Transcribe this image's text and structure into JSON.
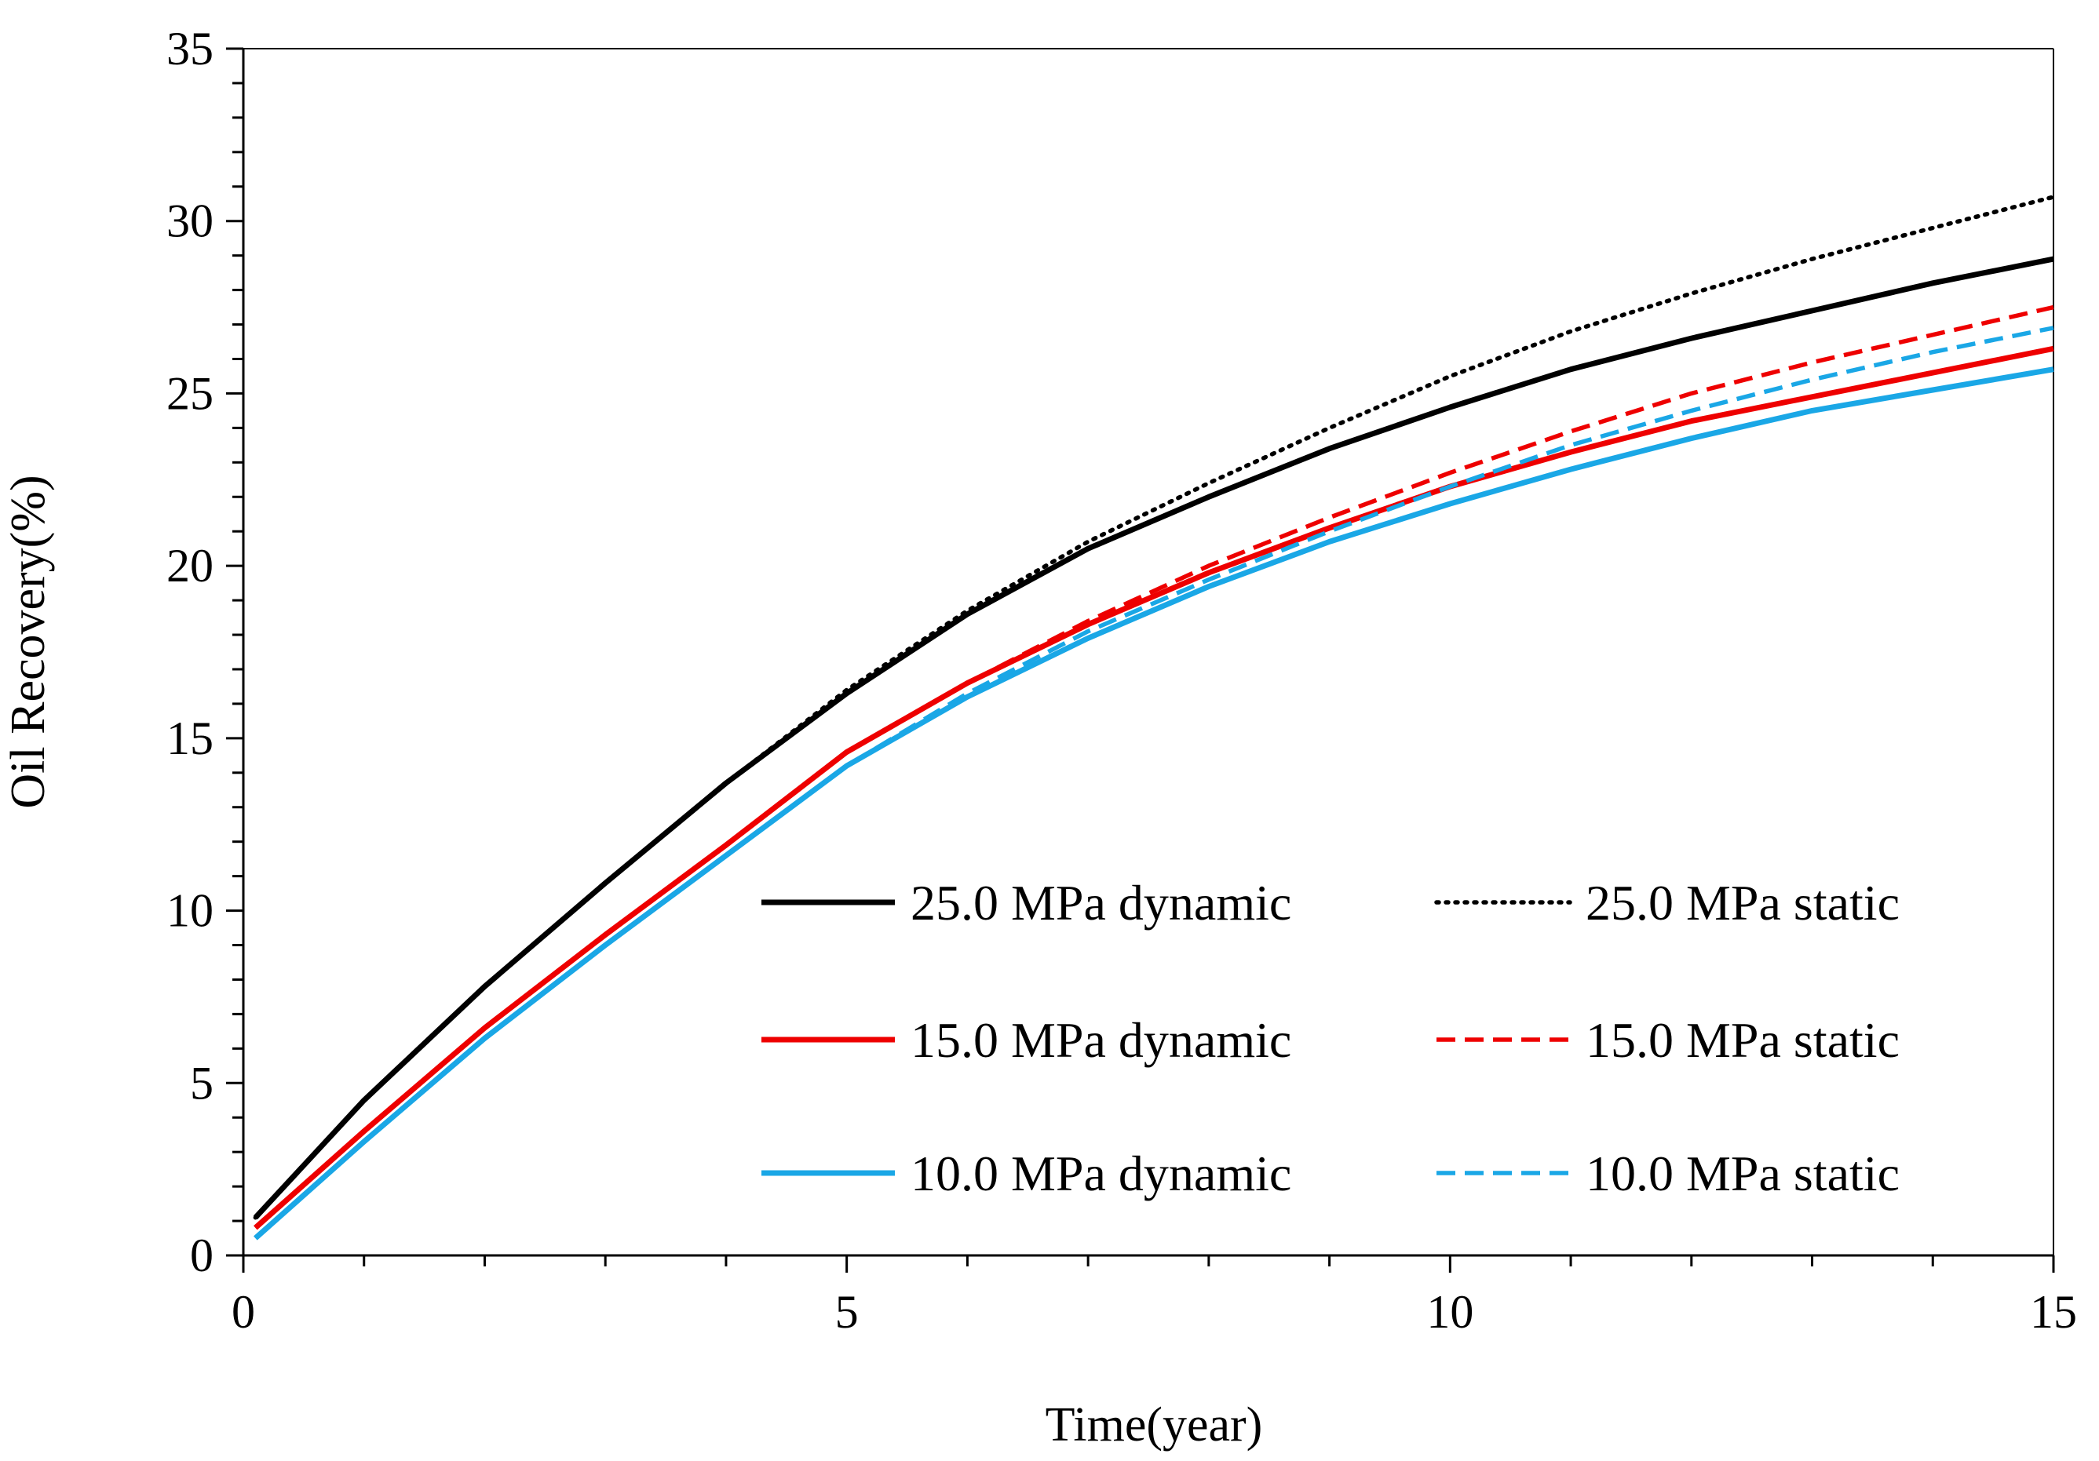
{
  "chart_data": {
    "type": "line",
    "title": "",
    "xlabel": "Time(year)",
    "ylabel": "Oil Recovery(%)",
    "xlim": [
      0,
      15
    ],
    "ylim": [
      0,
      35
    ],
    "x_ticks": [
      0,
      5,
      10,
      15
    ],
    "x_minor_step": 1,
    "y_ticks": [
      0,
      5,
      10,
      15,
      20,
      25,
      30,
      35
    ],
    "y_minor_step": 1,
    "grid": false,
    "legend_position": "lower-right",
    "x": [
      0.1,
      1,
      2,
      3,
      4,
      5,
      6,
      7,
      8,
      9,
      10,
      11,
      12,
      13,
      14,
      15
    ],
    "series": [
      {
        "name": "25.0 MPa dynamic",
        "color": "#000000",
        "dash": "solid",
        "values": [
          1.1,
          4.5,
          7.8,
          10.8,
          13.7,
          16.3,
          18.6,
          20.5,
          22.0,
          23.4,
          24.6,
          25.7,
          26.6,
          27.4,
          28.2,
          28.9
        ]
      },
      {
        "name": "25.0 MPa static",
        "color": "#000000",
        "dash": "dotted",
        "values": [
          1.1,
          4.5,
          7.8,
          10.8,
          13.7,
          16.4,
          18.7,
          20.7,
          22.4,
          24.0,
          25.5,
          26.8,
          27.9,
          28.9,
          29.8,
          30.7
        ]
      },
      {
        "name": "15.0 MPa dynamic",
        "color": "#ee0000",
        "dash": "solid",
        "values": [
          0.8,
          3.6,
          6.6,
          9.3,
          11.9,
          14.6,
          16.6,
          18.3,
          19.8,
          21.1,
          22.3,
          23.3,
          24.2,
          24.9,
          25.6,
          26.3
        ]
      },
      {
        "name": "15.0 MPa static",
        "color": "#ee0000",
        "dash": "dashed",
        "values": [
          0.8,
          3.6,
          6.6,
          9.3,
          11.9,
          14.6,
          16.6,
          18.4,
          20.0,
          21.4,
          22.7,
          23.9,
          25.0,
          25.9,
          26.7,
          27.5
        ]
      },
      {
        "name": "10.0 MPa dynamic",
        "color": "#1aa7e6",
        "dash": "solid",
        "values": [
          0.5,
          3.3,
          6.3,
          9.0,
          11.6,
          14.2,
          16.2,
          17.9,
          19.4,
          20.7,
          21.8,
          22.8,
          23.7,
          24.5,
          25.1,
          25.7
        ]
      },
      {
        "name": "10.0 MPa static",
        "color": "#1aa7e6",
        "dash": "dashed",
        "values": [
          0.5,
          3.3,
          6.3,
          9.0,
          11.6,
          14.2,
          16.3,
          18.1,
          19.6,
          21.0,
          22.3,
          23.5,
          24.5,
          25.4,
          26.2,
          26.9
        ]
      }
    ]
  }
}
